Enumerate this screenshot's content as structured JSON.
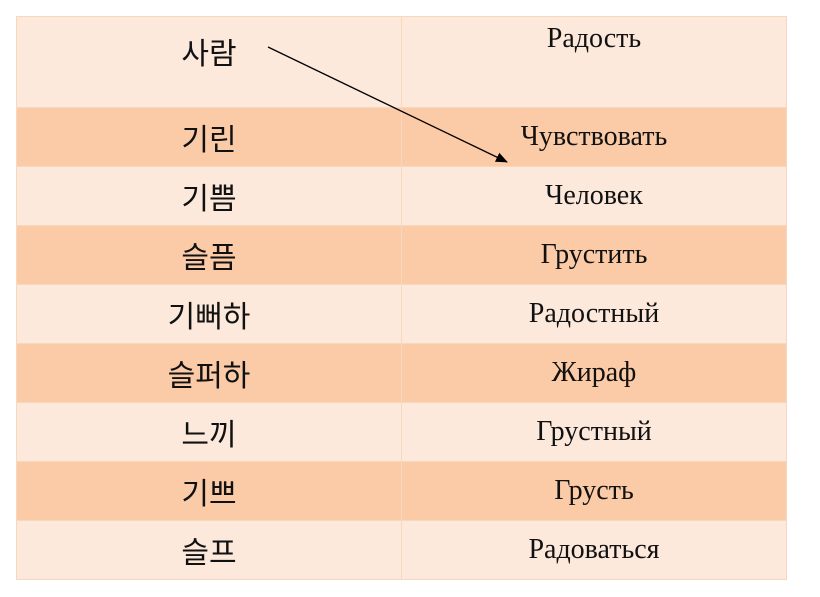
{
  "table": {
    "rows": [
      [
        "사람",
        "Радость"
      ],
      [
        "기린",
        "Чувствовать"
      ],
      [
        "기쁨",
        "Человек"
      ],
      [
        "슬픔",
        "Грустить"
      ],
      [
        "기뻐하",
        "Радостный"
      ],
      [
        "슬퍼하",
        "Жираф"
      ],
      [
        "느끼",
        "Грустный"
      ],
      [
        "기쁘",
        "Грусть"
      ],
      [
        "슬프",
        "Радоваться"
      ]
    ]
  }
}
